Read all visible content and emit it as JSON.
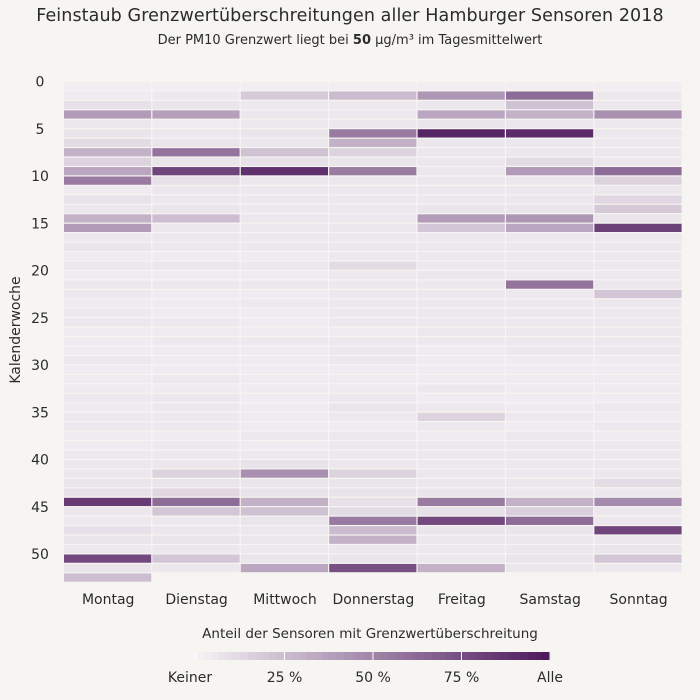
{
  "chart_data": {
    "type": "heatmap",
    "title": "Feinstaub Grenzwertüberschreitungen aller Hamburger Sensoren 2018",
    "subtitle": {
      "prefix": "Der PM10 Grenzwert liegt bei ",
      "value": "50",
      "unit": " µg/m³",
      "suffix": " im Tagesmittelwert"
    },
    "xlabel": "",
    "ylabel": "Kalenderwoche",
    "x_categories": [
      "Montag",
      "Dienstag",
      "Mittwoch",
      "Donnerstag",
      "Freitag",
      "Samstag",
      "Sonntag"
    ],
    "y_range": [
      0,
      52
    ],
    "y_ticks": [
      "0",
      "5",
      "10",
      "15",
      "20",
      "25",
      "30",
      "35",
      "40",
      "45",
      "50"
    ],
    "color_scale": {
      "low": "#f4f1f4",
      "high": "#4e1a5e"
    },
    "legend": {
      "title": "Anteil der Sensoren mit Grenzwertüberschreitung",
      "labels": [
        "Keiner",
        "25 %",
        "50 %",
        "75 %",
        "Alle"
      ]
    },
    "values": {
      "Montag": [
        [
          1,
          0.02
        ],
        [
          2,
          0.03
        ],
        [
          3,
          0.08
        ],
        [
          4,
          0.4
        ],
        [
          5,
          0.05
        ],
        [
          6,
          0.06
        ],
        [
          7,
          0.1
        ],
        [
          8,
          0.3
        ],
        [
          9,
          0.14
        ],
        [
          10,
          0.35
        ],
        [
          11,
          0.55
        ],
        [
          12,
          0.03
        ],
        [
          13,
          0.07
        ],
        [
          14,
          0.05
        ],
        [
          15,
          0.3
        ],
        [
          16,
          0.4
        ],
        [
          17,
          0.04
        ],
        [
          18,
          0.06
        ],
        [
          19,
          0.03
        ],
        [
          20,
          0.04
        ],
        [
          21,
          0.03
        ],
        [
          22,
          0.05
        ],
        [
          23,
          0.04
        ],
        [
          24,
          0.03
        ],
        [
          25,
          0.04
        ],
        [
          26,
          0.05
        ],
        [
          27,
          0.03
        ],
        [
          28,
          0.03
        ],
        [
          29,
          0.03
        ],
        [
          30,
          0.04
        ],
        [
          31,
          0.03
        ],
        [
          32,
          0.03
        ],
        [
          33,
          0.03
        ],
        [
          34,
          0.04
        ],
        [
          35,
          0.03
        ],
        [
          36,
          0.04
        ],
        [
          37,
          0.04
        ],
        [
          38,
          0.03
        ],
        [
          39,
          0.03
        ],
        [
          40,
          0.04
        ],
        [
          41,
          0.05
        ],
        [
          42,
          0.05
        ],
        [
          43,
          0.06
        ],
        [
          44,
          0.08
        ],
        [
          45,
          0.85
        ],
        [
          46,
          0.05
        ],
        [
          47,
          0.04
        ],
        [
          48,
          0.08
        ],
        [
          49,
          0.06
        ],
        [
          50,
          0.04
        ],
        [
          51,
          0.78
        ],
        [
          52,
          0.06
        ],
        [
          53,
          0.24
        ]
      ],
      "Dienstag": [
        [
          1,
          0.02
        ],
        [
          2,
          0.04
        ],
        [
          3,
          0.06
        ],
        [
          4,
          0.38
        ],
        [
          5,
          0.03
        ],
        [
          6,
          0.05
        ],
        [
          7,
          0.06
        ],
        [
          8,
          0.58
        ],
        [
          9,
          0.06
        ],
        [
          10,
          0.8
        ],
        [
          11,
          0.08
        ],
        [
          12,
          0.05
        ],
        [
          13,
          0.04
        ],
        [
          14,
          0.06
        ],
        [
          15,
          0.24
        ],
        [
          16,
          0.05
        ],
        [
          17,
          0.05
        ],
        [
          18,
          0.04
        ],
        [
          19,
          0.03
        ],
        [
          20,
          0.05
        ],
        [
          21,
          0.03
        ],
        [
          22,
          0.04
        ],
        [
          23,
          0.03
        ],
        [
          24,
          0.03
        ],
        [
          25,
          0.03
        ],
        [
          26,
          0.04
        ],
        [
          27,
          0.03
        ],
        [
          28,
          0.04
        ],
        [
          29,
          0.03
        ],
        [
          30,
          0.03
        ],
        [
          31,
          0.03
        ],
        [
          32,
          0.04
        ],
        [
          33,
          0.03
        ],
        [
          34,
          0.05
        ],
        [
          35,
          0.04
        ],
        [
          36,
          0.04
        ],
        [
          37,
          0.04
        ],
        [
          38,
          0.03
        ],
        [
          39,
          0.04
        ],
        [
          40,
          0.04
        ],
        [
          41,
          0.05
        ],
        [
          42,
          0.14
        ],
        [
          43,
          0.06
        ],
        [
          44,
          0.12
        ],
        [
          45,
          0.62
        ],
        [
          46,
          0.2
        ],
        [
          47,
          0.04
        ],
        [
          48,
          0.05
        ],
        [
          49,
          0.06
        ],
        [
          50,
          0.05
        ],
        [
          51,
          0.2
        ],
        [
          52,
          0.05
        ]
      ],
      "Mittwoch": [
        [
          1,
          0.02
        ],
        [
          2,
          0.18
        ],
        [
          3,
          0.04
        ],
        [
          4,
          0.05
        ],
        [
          5,
          0.04
        ],
        [
          6,
          0.06
        ],
        [
          7,
          0.05
        ],
        [
          8,
          0.22
        ],
        [
          9,
          0.08
        ],
        [
          10,
          0.9
        ],
        [
          11,
          0.05
        ],
        [
          12,
          0.04
        ],
        [
          13,
          0.04
        ],
        [
          14,
          0.04
        ],
        [
          15,
          0.05
        ],
        [
          16,
          0.04
        ],
        [
          17,
          0.04
        ],
        [
          18,
          0.04
        ],
        [
          19,
          0.03
        ],
        [
          20,
          0.04
        ],
        [
          21,
          0.03
        ],
        [
          22,
          0.04
        ],
        [
          23,
          0.03
        ],
        [
          24,
          0.04
        ],
        [
          25,
          0.03
        ],
        [
          26,
          0.03
        ],
        [
          27,
          0.03
        ],
        [
          28,
          0.04
        ],
        [
          29,
          0.03
        ],
        [
          30,
          0.03
        ],
        [
          31,
          0.03
        ],
        [
          32,
          0.03
        ],
        [
          33,
          0.03
        ],
        [
          34,
          0.03
        ],
        [
          35,
          0.03
        ],
        [
          36,
          0.03
        ],
        [
          37,
          0.03
        ],
        [
          38,
          0.04
        ],
        [
          39,
          0.03
        ],
        [
          40,
          0.04
        ],
        [
          41,
          0.07
        ],
        [
          42,
          0.45
        ],
        [
          43,
          0.06
        ],
        [
          44,
          0.07
        ],
        [
          45,
          0.3
        ],
        [
          46,
          0.22
        ],
        [
          47,
          0.06
        ],
        [
          48,
          0.05
        ],
        [
          49,
          0.05
        ],
        [
          50,
          0.04
        ],
        [
          51,
          0.06
        ],
        [
          52,
          0.35
        ]
      ],
      "Donnerstag": [
        [
          1,
          0.02
        ],
        [
          2,
          0.25
        ],
        [
          3,
          0.04
        ],
        [
          4,
          0.04
        ],
        [
          5,
          0.05
        ],
        [
          6,
          0.55
        ],
        [
          7,
          0.3
        ],
        [
          8,
          0.14
        ],
        [
          9,
          0.06
        ],
        [
          10,
          0.55
        ],
        [
          11,
          0.05
        ],
        [
          12,
          0.05
        ],
        [
          13,
          0.04
        ],
        [
          14,
          0.04
        ],
        [
          15,
          0.04
        ],
        [
          16,
          0.05
        ],
        [
          17,
          0.05
        ],
        [
          18,
          0.05
        ],
        [
          19,
          0.04
        ],
        [
          20,
          0.1
        ],
        [
          21,
          0.04
        ],
        [
          22,
          0.04
        ],
        [
          23,
          0.04
        ],
        [
          24,
          0.04
        ],
        [
          25,
          0.04
        ],
        [
          26,
          0.05
        ],
        [
          27,
          0.03
        ],
        [
          28,
          0.04
        ],
        [
          29,
          0.04
        ],
        [
          30,
          0.04
        ],
        [
          31,
          0.03
        ],
        [
          32,
          0.03
        ],
        [
          33,
          0.03
        ],
        [
          34,
          0.04
        ],
        [
          35,
          0.06
        ],
        [
          36,
          0.04
        ],
        [
          37,
          0.03
        ],
        [
          38,
          0.04
        ],
        [
          39,
          0.04
        ],
        [
          40,
          0.04
        ],
        [
          41,
          0.04
        ],
        [
          42,
          0.14
        ],
        [
          43,
          0.06
        ],
        [
          44,
          0.07
        ],
        [
          45,
          0.08
        ],
        [
          46,
          0.1
        ],
        [
          47,
          0.55
        ],
        [
          48,
          0.25
        ],
        [
          49,
          0.3
        ],
        [
          50,
          0.05
        ],
        [
          51,
          0.06
        ],
        [
          52,
          0.75
        ]
      ],
      "Freitag": [
        [
          1,
          0.02
        ],
        [
          2,
          0.42
        ],
        [
          3,
          0.05
        ],
        [
          4,
          0.35
        ],
        [
          5,
          0.06
        ],
        [
          6,
          0.95
        ],
        [
          7,
          0.05
        ],
        [
          8,
          0.05
        ],
        [
          9,
          0.05
        ],
        [
          10,
          0.05
        ],
        [
          11,
          0.05
        ],
        [
          12,
          0.05
        ],
        [
          13,
          0.04
        ],
        [
          14,
          0.06
        ],
        [
          15,
          0.4
        ],
        [
          16,
          0.2
        ],
        [
          17,
          0.05
        ],
        [
          18,
          0.04
        ],
        [
          19,
          0.04
        ],
        [
          20,
          0.04
        ],
        [
          21,
          0.05
        ],
        [
          22,
          0.04
        ],
        [
          23,
          0.04
        ],
        [
          24,
          0.04
        ],
        [
          25,
          0.04
        ],
        [
          26,
          0.04
        ],
        [
          27,
          0.04
        ],
        [
          28,
          0.04
        ],
        [
          29,
          0.03
        ],
        [
          30,
          0.03
        ],
        [
          31,
          0.03
        ],
        [
          32,
          0.03
        ],
        [
          33,
          0.04
        ],
        [
          34,
          0.03
        ],
        [
          35,
          0.04
        ],
        [
          36,
          0.14
        ],
        [
          37,
          0.04
        ],
        [
          38,
          0.03
        ],
        [
          39,
          0.04
        ],
        [
          40,
          0.04
        ],
        [
          41,
          0.04
        ],
        [
          42,
          0.05
        ],
        [
          43,
          0.05
        ],
        [
          44,
          0.06
        ],
        [
          45,
          0.55
        ],
        [
          46,
          0.08
        ],
        [
          47,
          0.78
        ],
        [
          48,
          0.06
        ],
        [
          49,
          0.05
        ],
        [
          50,
          0.04
        ],
        [
          51,
          0.05
        ],
        [
          52,
          0.3
        ]
      ],
      "Samstag": [
        [
          1,
          0.02
        ],
        [
          2,
          0.62
        ],
        [
          3,
          0.22
        ],
        [
          4,
          0.3
        ],
        [
          5,
          0.05
        ],
        [
          6,
          0.92
        ],
        [
          7,
          0.05
        ],
        [
          8,
          0.05
        ],
        [
          9,
          0.1
        ],
        [
          10,
          0.4
        ],
        [
          11,
          0.05
        ],
        [
          12,
          0.05
        ],
        [
          13,
          0.05
        ],
        [
          14,
          0.06
        ],
        [
          15,
          0.42
        ],
        [
          16,
          0.35
        ],
        [
          17,
          0.05
        ],
        [
          18,
          0.05
        ],
        [
          19,
          0.04
        ],
        [
          20,
          0.05
        ],
        [
          21,
          0.04
        ],
        [
          22,
          0.58
        ],
        [
          23,
          0.04
        ],
        [
          24,
          0.04
        ],
        [
          25,
          0.05
        ],
        [
          26,
          0.04
        ],
        [
          27,
          0.04
        ],
        [
          28,
          0.04
        ],
        [
          29,
          0.04
        ],
        [
          30,
          0.03
        ],
        [
          31,
          0.03
        ],
        [
          32,
          0.03
        ],
        [
          33,
          0.03
        ],
        [
          34,
          0.03
        ],
        [
          35,
          0.03
        ],
        [
          36,
          0.04
        ],
        [
          37,
          0.03
        ],
        [
          38,
          0.04
        ],
        [
          39,
          0.04
        ],
        [
          40,
          0.05
        ],
        [
          41,
          0.04
        ],
        [
          42,
          0.04
        ],
        [
          43,
          0.05
        ],
        [
          44,
          0.05
        ],
        [
          45,
          0.3
        ],
        [
          46,
          0.16
        ],
        [
          47,
          0.62
        ],
        [
          48,
          0.06
        ],
        [
          49,
          0.05
        ],
        [
          50,
          0.05
        ],
        [
          51,
          0.06
        ],
        [
          52,
          0.05
        ]
      ],
      "Sonntag": [
        [
          1,
          0.02
        ],
        [
          2,
          0.04
        ],
        [
          3,
          0.04
        ],
        [
          4,
          0.45
        ],
        [
          5,
          0.04
        ],
        [
          6,
          0.05
        ],
        [
          7,
          0.04
        ],
        [
          8,
          0.05
        ],
        [
          9,
          0.05
        ],
        [
          10,
          0.62
        ],
        [
          11,
          0.14
        ],
        [
          12,
          0.05
        ],
        [
          13,
          0.12
        ],
        [
          14,
          0.18
        ],
        [
          15,
          0.06
        ],
        [
          16,
          0.82
        ],
        [
          17,
          0.05
        ],
        [
          18,
          0.05
        ],
        [
          19,
          0.04
        ],
        [
          20,
          0.04
        ],
        [
          21,
          0.04
        ],
        [
          22,
          0.05
        ],
        [
          23,
          0.2
        ],
        [
          24,
          0.04
        ],
        [
          25,
          0.04
        ],
        [
          26,
          0.04
        ],
        [
          27,
          0.04
        ],
        [
          28,
          0.04
        ],
        [
          29,
          0.04
        ],
        [
          30,
          0.03
        ],
        [
          31,
          0.03
        ],
        [
          32,
          0.03
        ],
        [
          33,
          0.03
        ],
        [
          34,
          0.03
        ],
        [
          35,
          0.04
        ],
        [
          36,
          0.03
        ],
        [
          37,
          0.04
        ],
        [
          38,
          0.03
        ],
        [
          39,
          0.04
        ],
        [
          40,
          0.04
        ],
        [
          41,
          0.05
        ],
        [
          42,
          0.05
        ],
        [
          43,
          0.1
        ],
        [
          44,
          0.05
        ],
        [
          45,
          0.48
        ],
        [
          46,
          0.05
        ],
        [
          47,
          0.05
        ],
        [
          48,
          0.8
        ],
        [
          49,
          0.05
        ],
        [
          50,
          0.06
        ],
        [
          51,
          0.2
        ],
        [
          52,
          0.04
        ]
      ]
    }
  }
}
